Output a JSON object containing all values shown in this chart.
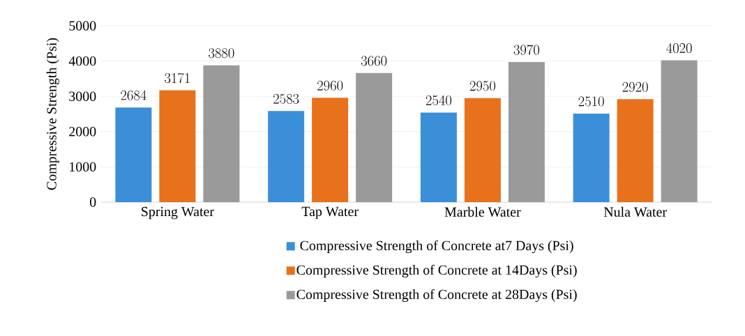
{
  "chart_data": {
    "type": "bar",
    "ylabel": "Compressive Strength (Psi)",
    "categories": [
      "Spring Water",
      "Tap Water",
      "Marble Water",
      "Nula Water"
    ],
    "series": [
      {
        "name": "Compressive Strength of Concrete at7 Days (Psi)",
        "color": "#3b8fd9",
        "values": [
          2684,
          2583,
          2540,
          2510
        ]
      },
      {
        "name": "Compressive Strength of Concrete at 14Days (Psi)",
        "color": "#e8711c",
        "values": [
          3171,
          2960,
          2950,
          2920
        ]
      },
      {
        "name": "Compressive Strength of Concrete at 28Days (Psi)",
        "color": "#9a9a9a",
        "values": [
          3880,
          3660,
          3970,
          4020
        ]
      }
    ],
    "ylim": [
      0,
      5000
    ],
    "yticks": [
      0,
      1000,
      2000,
      3000,
      4000,
      5000
    ],
    "grid": "y",
    "legend": "bottom",
    "data_labels": true
  }
}
